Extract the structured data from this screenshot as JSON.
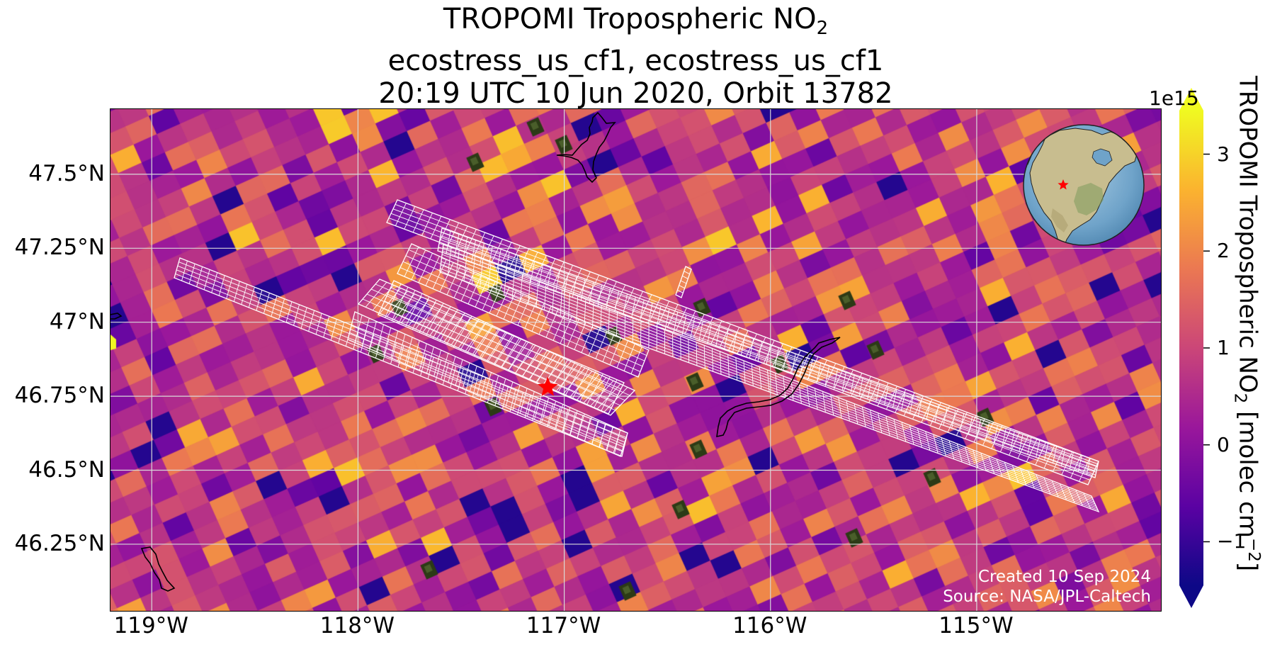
{
  "title": {
    "line1_prefix": "TROPOMI Tropospheric NO",
    "line1_subscript": "2",
    "line2": "ecostress_us_cf1, ecostress_us_cf1",
    "line3": "20:19 UTC 10 Jun 2020, Orbit 13782"
  },
  "map": {
    "extent": {
      "lon_min": -119.2,
      "lon_max": -114.1,
      "lat_min": 46.02,
      "lat_max": 47.72
    },
    "lat_ticks": [
      {
        "value": 47.5,
        "label": "47.5°N"
      },
      {
        "value": 47.25,
        "label": "47.25°N"
      },
      {
        "value": 47.0,
        "label": "47°N"
      },
      {
        "value": 46.75,
        "label": "46.75°N"
      },
      {
        "value": 46.5,
        "label": "46.5°N"
      },
      {
        "value": 46.25,
        "label": "46.25°N"
      }
    ],
    "lon_ticks": [
      {
        "value": -119,
        "label": "119°W"
      },
      {
        "value": -118,
        "label": "118°W"
      },
      {
        "value": -117,
        "label": "117°W"
      },
      {
        "value": -116,
        "label": "116°W"
      },
      {
        "value": -115,
        "label": "115°W"
      }
    ],
    "gridlines": true,
    "target_marker": {
      "lon": -117.08,
      "lat": 46.78,
      "symbol": "red-star",
      "color": "#ff0000"
    },
    "credits": {
      "line1": "Created 10 Sep 2024",
      "line2": "Source: NASA/JPL-Caltech"
    },
    "inset_globe": {
      "position": "top-right",
      "marker": {
        "symbol": "red-star",
        "color": "#ff0000"
      }
    },
    "footprint_outline_color": "#ffffff",
    "coastline_color": "#000000"
  },
  "colorbar": {
    "colormap": "plasma",
    "vmin": -1.45,
    "vmax": 3.45,
    "extend": "both",
    "exponent_label": "1e15",
    "ticks": [
      {
        "value": 3,
        "label": "3"
      },
      {
        "value": 2,
        "label": "2"
      },
      {
        "value": 1,
        "label": "1"
      },
      {
        "value": 0,
        "label": "0"
      },
      {
        "value": -1,
        "label": "−1"
      }
    ],
    "label_prefix": "TROPOMI Tropospheric NO",
    "label_subscript": "2",
    "label_units_prefix": " [molec cm",
    "label_units_exponent": "−2",
    "label_units_suffix": "]"
  },
  "colors": {
    "plasma": [
      "#0d0887",
      "#5b02a3",
      "#9a179b",
      "#cb4678",
      "#eb7852",
      "#fbb32f",
      "#f0f921"
    ],
    "grid": "#d9d9d9",
    "ocean": "#6fa3c9",
    "land": "#c8bd8f"
  }
}
